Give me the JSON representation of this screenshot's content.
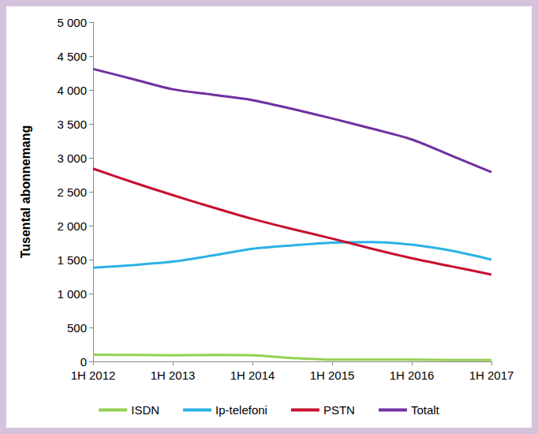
{
  "chart_data": {
    "type": "line",
    "y_label": "Tusental abonnemang",
    "categories": [
      "1H 2012",
      null,
      "1H 2013",
      null,
      "1H 2014",
      null,
      "1H 2015",
      null,
      "1H 2016",
      null,
      "1H 2017"
    ],
    "series": [
      {
        "name": "ISDN",
        "color": "#92d050",
        "values": [
          100,
          95,
          90,
          95,
          90,
          50,
          25,
          25,
          25,
          20,
          20
        ]
      },
      {
        "name": "Ip-telefoni",
        "color": "#2ab2e6",
        "values": [
          1380,
          1420,
          1470,
          1560,
          1660,
          1710,
          1750,
          1760,
          1720,
          1630,
          1500
        ]
      },
      {
        "name": "PSTN",
        "color": "#c8102e",
        "values": [
          2840,
          2640,
          2450,
          2270,
          2100,
          1950,
          1810,
          1660,
          1520,
          1400,
          1280
        ]
      },
      {
        "name": "Totalt",
        "color": "#7030a0",
        "values": [
          4310,
          4160,
          4010,
          3930,
          3850,
          3720,
          3580,
          3430,
          3270,
          3030,
          2790
        ]
      }
    ],
    "ylim": [
      0,
      5000
    ],
    "yticks": [
      0,
      500,
      {
        "value": 1000,
        "label": "1 000"
      },
      {
        "value": 1500,
        "label": "1 500"
      },
      {
        "value": 2000,
        "label": "2 000"
      },
      {
        "value": 2500,
        "label": "2 500"
      },
      {
        "value": 3000,
        "label": "3 000"
      },
      {
        "value": 3500,
        "label": "3 500"
      },
      {
        "value": 4000,
        "label": "4 000"
      },
      {
        "value": 4500,
        "label": "4 500"
      },
      {
        "value": 5000,
        "label": "5 000"
      }
    ],
    "grid": false,
    "legend": "bottom"
  }
}
